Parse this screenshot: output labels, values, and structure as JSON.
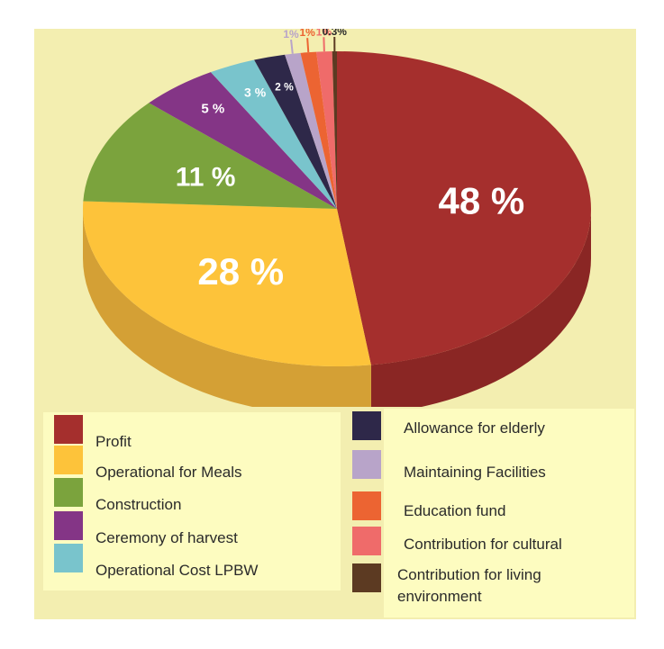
{
  "chart_data": {
    "type": "pie",
    "slices": [
      {
        "name": "Profit",
        "value": 48,
        "label": "48 %",
        "color": "#a52f2d",
        "side": "#8a2624"
      },
      {
        "name": "Operational for Meals",
        "value": 28,
        "label": "28 %",
        "color": "#fdc33a",
        "side": "#d4a035"
      },
      {
        "name": "Construction",
        "value": 11,
        "label": "11 %",
        "color": "#7ba33d",
        "side": "#5f8230"
      },
      {
        "name": "Ceremony of harvest",
        "value": 5,
        "label": "5 %",
        "color": "#843586",
        "side": "#6a2a6c"
      },
      {
        "name": "Operational Cost LPBW",
        "value": 3,
        "label": "3 %",
        "color": "#79c4cc",
        "side": "#5fa3aa"
      },
      {
        "name": "Allowance for elderly",
        "value": 2,
        "label": "2 %",
        "color": "#2e2849",
        "side": "#221e38"
      },
      {
        "name": "Maintaining Facilities",
        "value": 1,
        "label": "1%",
        "color": "#b8a4c9",
        "side": "#9885a9"
      },
      {
        "name": "Education fund",
        "value": 1,
        "label": "1%",
        "color": "#ec6432",
        "side": "#c65329"
      },
      {
        "name": "Contribution for cultural",
        "value": 1,
        "label": "1%",
        "color": "#ef6b6a",
        "side": "#c95857"
      },
      {
        "name": "Contribution for living environment",
        "value": 0.3,
        "label": "0.3%",
        "color": "#5c3a22",
        "side": "#4a2e1b"
      }
    ],
    "label_colors": {
      "Profit": "#ffffff",
      "Operational for Meals": "#ffffff",
      "Construction": "#ffffff",
      "Ceremony of harvest": "#ffffff",
      "Operational Cost LPBW": "#ffffff",
      "Allowance for elderly": "#ffffff",
      "Maintaining Facilities": "#b8a4c9",
      "Education fund": "#ec6432",
      "Contribution for cultural": "#ef6b6a",
      "Contribution for living environment": "#2b2b2b"
    },
    "legend": {
      "left": [
        "Profit",
        "Operational for Meals",
        "Construction",
        "Ceremony of harvest",
        "Operational Cost LPBW"
      ],
      "right": [
        "Allowance for elderly",
        "Maintaining Facilities",
        "Education fund",
        "Contribution for cultural",
        "Contribution for living environment"
      ],
      "right_display": [
        "Allowance for elderly",
        "Maintaining Facilities",
        "Education fund",
        "Contribution for cultural",
        "Contribution for living\nenvironment"
      ]
    },
    "title": "",
    "background": "#f3eeb0",
    "legend_background": "#fdfcc0"
  }
}
